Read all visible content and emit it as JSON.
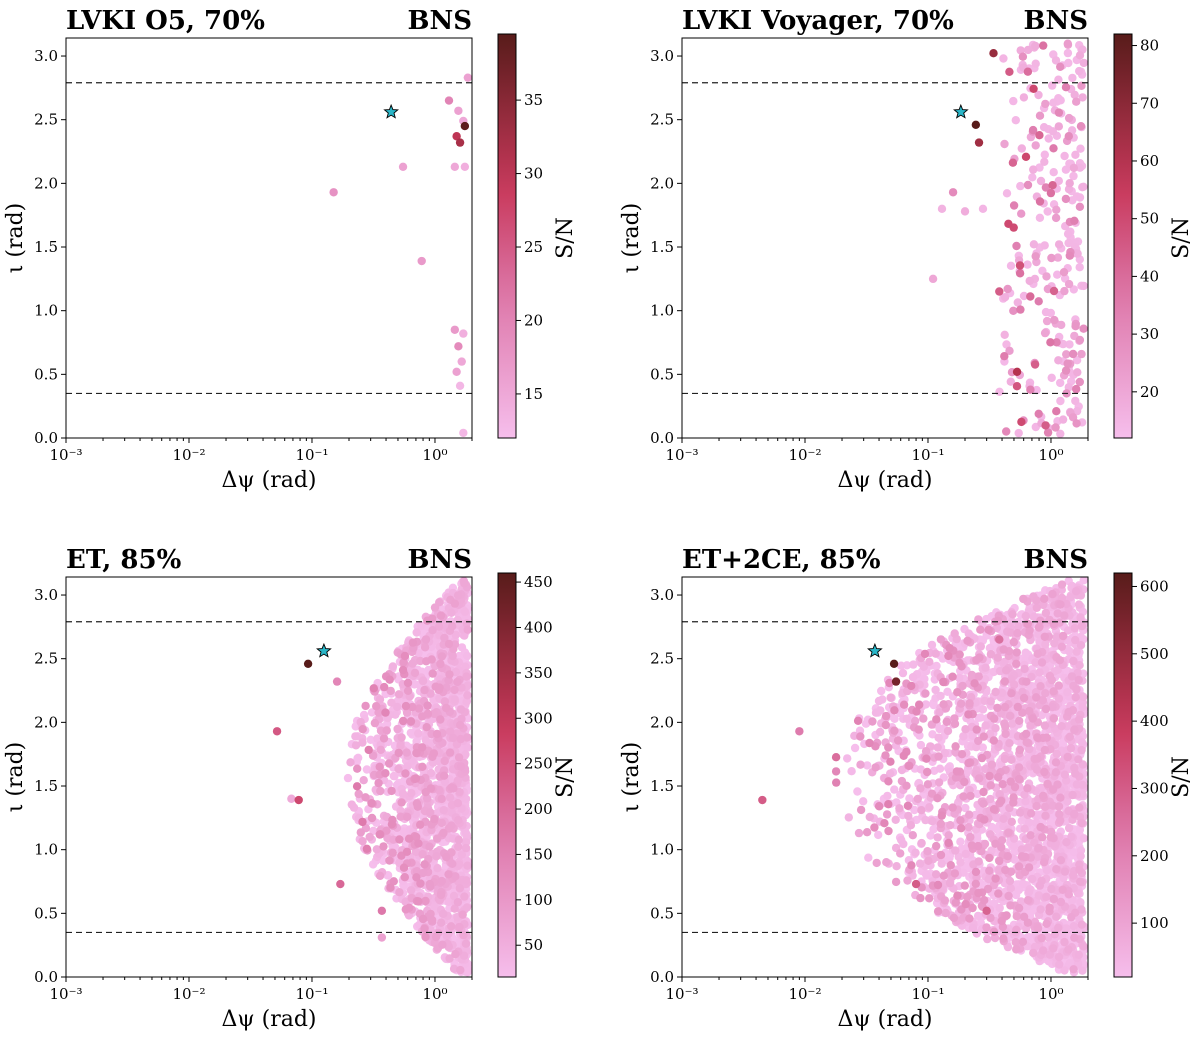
{
  "chart_data": [
    {
      "type": "scatter",
      "title": "LVKI O5, 70%",
      "title_right": "BNS",
      "xlabel": "Δψ (rad)",
      "ylabel": "ι (rad)",
      "xscale": "log",
      "xlim": [
        0.001,
        2.0
      ],
      "ylim": [
        0.0,
        3.14159
      ],
      "xticks": [
        "10⁻³",
        "10⁻²",
        "10⁻¹",
        "10⁰"
      ],
      "yticks": [
        "0.0",
        "0.5",
        "1.0",
        "1.5",
        "2.0",
        "2.5",
        "3.0"
      ],
      "hlines": [
        0.35,
        2.79
      ],
      "colorbar": {
        "label": "S/N",
        "range": [
          12,
          39.5
        ],
        "ticks": [
          "15",
          "20",
          "25",
          "30",
          "35"
        ]
      },
      "star": {
        "x": 0.44,
        "y": 2.56
      },
      "points": [
        [
          0.15,
          1.93,
          18
        ],
        [
          0.55,
          2.13,
          16
        ],
        [
          0.78,
          1.39,
          17
        ],
        [
          1.45,
          2.13,
          15
        ],
        [
          1.75,
          2.13,
          14
        ],
        [
          1.3,
          2.65,
          20
        ],
        [
          1.55,
          2.57,
          16
        ],
        [
          1.7,
          2.49,
          15
        ],
        [
          1.5,
          2.37,
          30
        ],
        [
          1.6,
          2.32,
          32
        ],
        [
          1.75,
          2.45,
          39
        ],
        [
          1.85,
          2.83,
          16
        ],
        [
          1.45,
          0.85,
          17
        ],
        [
          1.7,
          0.82,
          14
        ],
        [
          1.55,
          0.72,
          19
        ],
        [
          1.65,
          0.6,
          15
        ],
        [
          1.5,
          0.52,
          16
        ],
        [
          1.6,
          0.41,
          13
        ],
        [
          1.7,
          0.04,
          13
        ]
      ]
    },
    {
      "type": "scatter",
      "title": "LVKI Voyager, 70%",
      "title_right": "BNS",
      "xlabel": "Δψ (rad)",
      "ylabel": "ι (rad)",
      "xscale": "log",
      "xlim": [
        0.001,
        2.0
      ],
      "ylim": [
        0.0,
        3.14159
      ],
      "xticks": [
        "10⁻³",
        "10⁻²",
        "10⁻¹",
        "10⁰"
      ],
      "yticks": [
        "0.0",
        "0.5",
        "1.0",
        "1.5",
        "2.0",
        "2.5",
        "3.0"
      ],
      "hlines": [
        0.35,
        2.79
      ],
      "colorbar": {
        "label": "S/N",
        "range": [
          12,
          82
        ],
        "ticks": [
          "20",
          "30",
          "40",
          "50",
          "60",
          "70",
          "80"
        ]
      },
      "star": {
        "x": 0.185,
        "y": 2.56
      },
      "points": [
        [
          0.245,
          2.46,
          82
        ],
        [
          0.26,
          2.32,
          65
        ],
        [
          0.53,
          0.52,
          60
        ],
        [
          0.16,
          1.93,
          30
        ],
        [
          0.11,
          1.25,
          20
        ],
        [
          0.13,
          1.8,
          16
        ],
        [
          0.2,
          1.78,
          18
        ],
        [
          0.28,
          1.8,
          15
        ]
      ],
      "cloud": {
        "xmin": 0.33,
        "xmax": 1.85,
        "ymin": 0.03,
        "ymax": 3.1,
        "count": 280,
        "seed": 7,
        "vmin": 14,
        "vmax": 55,
        "shape": "band"
      }
    },
    {
      "type": "scatter",
      "title": "ET, 85%",
      "title_right": "BNS",
      "xlabel": "Δψ (rad)",
      "ylabel": "ι (rad)",
      "xscale": "log",
      "xlim": [
        0.001,
        2.0
      ],
      "ylim": [
        0.0,
        3.14159
      ],
      "xticks": [
        "10⁻³",
        "10⁻²",
        "10⁻¹",
        "10⁰"
      ],
      "yticks": [
        "0.0",
        "0.5",
        "1.0",
        "1.5",
        "2.0",
        "2.5",
        "3.0"
      ],
      "hlines": [
        0.35,
        2.79
      ],
      "colorbar": {
        "label": "S/N",
        "range": [
          15,
          460
        ],
        "ticks": [
          "50",
          "100",
          "150",
          "200",
          "250",
          "300",
          "350",
          "400",
          "450"
        ]
      },
      "star": {
        "x": 0.125,
        "y": 2.56
      },
      "points": [
        [
          0.093,
          2.46,
          460
        ],
        [
          0.052,
          1.93,
          230
        ],
        [
          0.078,
          1.39,
          260
        ],
        [
          0.068,
          1.4,
          60
        ],
        [
          0.17,
          0.73,
          200
        ],
        [
          0.37,
          0.52,
          170
        ],
        [
          0.37,
          0.31,
          80
        ],
        [
          0.16,
          2.32,
          140
        ]
      ],
      "cloud": {
        "xmin": 0.12,
        "xmax": 1.85,
        "ymin": 0.03,
        "ymax": 3.12,
        "count": 1800,
        "seed": 11,
        "vmin": 15,
        "vmax": 150,
        "shape": "wedge"
      }
    },
    {
      "type": "scatter",
      "title": "ET+2CE, 85%",
      "title_right": "BNS",
      "xlabel": "Δψ (rad)",
      "ylabel": "ι (rad)",
      "xscale": "log",
      "xlim": [
        0.001,
        2.0
      ],
      "ylim": [
        0.0,
        3.14159
      ],
      "xticks": [
        "10⁻³",
        "10⁻²",
        "10⁻¹",
        "10⁰"
      ],
      "yticks": [
        "0.0",
        "0.5",
        "1.0",
        "1.5",
        "2.0",
        "2.5",
        "3.0"
      ],
      "hlines": [
        0.35,
        2.79
      ],
      "colorbar": {
        "label": "S/N",
        "range": [
          20,
          620
        ],
        "ticks": [
          "100",
          "200",
          "300",
          "400",
          "500",
          "600"
        ]
      },
      "star": {
        "x": 0.037,
        "y": 2.56
      },
      "points": [
        [
          0.053,
          2.46,
          620
        ],
        [
          0.055,
          2.32,
          560
        ],
        [
          0.0045,
          1.39,
          300
        ],
        [
          0.009,
          1.93,
          220
        ],
        [
          0.08,
          0.73,
          300
        ],
        [
          0.3,
          0.52,
          280
        ],
        [
          0.38,
          2.65,
          250
        ]
      ],
      "cloud": {
        "xmin": 0.012,
        "xmax": 1.85,
        "ymin": 0.03,
        "ymax": 3.12,
        "count": 2600,
        "seed": 23,
        "vmin": 20,
        "vmax": 200,
        "shape": "wide"
      }
    }
  ]
}
